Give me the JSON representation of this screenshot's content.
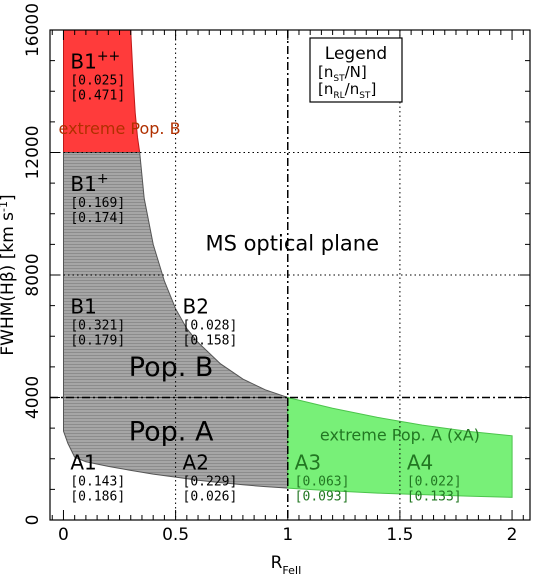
{
  "chart_data": {
    "type": "area",
    "title": "",
    "xlabel": "R",
    "xlabel_sub": "FeII",
    "ylabel": "FWHM(Hβ) [km s",
    "ylabel_sup": "-1",
    "ylabel_end": "]",
    "xlim": [
      -0.06,
      2.08
    ],
    "ylim": [
      0,
      16000
    ],
    "xticks": [
      "0",
      "0.5",
      "1",
      "1.5",
      "2"
    ],
    "yticks": [
      "0",
      "4000",
      "8000",
      "12000",
      "16000"
    ],
    "grid": true,
    "colors": {
      "pop_a": "#999999",
      "pop_b": "#999999",
      "extreme_pop_b": "#ff3b3b",
      "extreme_pop_a": "#78f078",
      "extreme_pop_b_text": "#b03000",
      "extreme_pop_a_text": "#227722"
    },
    "boundary": {
      "description": "right edge of populated region",
      "pop_b": {
        "x": [
          0.34,
          0.36,
          0.4,
          0.45,
          0.5,
          0.55,
          0.6,
          0.7,
          0.8,
          0.9,
          1.0
        ],
        "y": [
          12000,
          10500,
          9000,
          7800,
          6900,
          6250,
          5800,
          5100,
          4600,
          4250,
          4000
        ]
      },
      "extreme_pop_b": {
        "x": [
          0.3,
          0.31,
          0.32,
          0.33,
          0.34
        ],
        "y": [
          16000,
          14500,
          13300,
          12500,
          12000
        ]
      },
      "pop_a_lower": {
        "x": [
          0.02,
          0.05,
          0.1,
          0.2,
          0.3,
          0.4,
          0.5,
          0.6,
          0.7,
          0.8,
          0.9,
          1.0
        ],
        "y": [
          2500,
          2050,
          1900,
          1750,
          1620,
          1500,
          1400,
          1300,
          1220,
          1150,
          1090,
          1040
        ]
      },
      "extreme_pop_a_upper": {
        "x": [
          1.0,
          1.2,
          1.4,
          1.6,
          1.8,
          2.0
        ],
        "y": [
          4000,
          3650,
          3350,
          3100,
          2900,
          2750
        ]
      },
      "extreme_pop_a_lower": {
        "x": [
          1.0,
          1.2,
          1.4,
          1.6,
          1.8,
          2.0
        ],
        "y": [
          1040,
          950,
          880,
          830,
          780,
          740
        ]
      }
    },
    "bins": [
      {
        "name": "B1",
        "sup": "++",
        "values": [
          "[0.025]",
          "[0.471]"
        ],
        "x": 0.12,
        "y": 14750,
        "color": "#000000"
      },
      {
        "name": "B1",
        "sup": "+",
        "values": [
          "[0.169]",
          "[0.174]"
        ],
        "x": 0.12,
        "y": 10750,
        "color": "#000000"
      },
      {
        "name": "B1",
        "sup": "",
        "values": [
          "[0.321]",
          "[0.179]"
        ],
        "x": 0.12,
        "y": 6750,
        "color": "#000000"
      },
      {
        "name": "B2",
        "sup": "",
        "values": [
          "[0.028]",
          "[0.158]"
        ],
        "x": 0.62,
        "y": 6750,
        "color": "#000000"
      },
      {
        "name": "A1",
        "sup": "",
        "values": [
          "[0.143]",
          "[0.186]"
        ],
        "x": 0.12,
        "y": 1650,
        "color": "#000000"
      },
      {
        "name": "A2",
        "sup": "",
        "values": [
          "[0.229]",
          "[0.026]"
        ],
        "x": 0.62,
        "y": 1650,
        "color": "#000000"
      },
      {
        "name": "A3",
        "sup": "",
        "values": [
          "[0.063]",
          "[0.093]"
        ],
        "x": 1.12,
        "y": 1650,
        "color": "#227722"
      },
      {
        "name": "A4",
        "sup": "",
        "values": [
          "[0.022]",
          "[0.133]"
        ],
        "x": 1.62,
        "y": 1650,
        "color": "#227722"
      }
    ],
    "annotations": [
      {
        "text": "extreme Pop. B",
        "x": 0.25,
        "y": 12600,
        "color": "#b03000",
        "size": "medium"
      },
      {
        "text": "MS optical plane",
        "x": 1.02,
        "y": 8800,
        "color": "#000000",
        "size": "large"
      },
      {
        "text": "Pop. B",
        "x": 0.48,
        "y": 4700,
        "color": "#000000",
        "size": "xlarge"
      },
      {
        "text": "Pop. A",
        "x": 0.48,
        "y": 2600,
        "color": "#000000",
        "size": "xlarge"
      },
      {
        "text": "extreme Pop. A (xA)",
        "x": 1.5,
        "y": 2600,
        "color": "#227722",
        "size": "medium"
      }
    ],
    "legend": {
      "title": "Legend",
      "lines": [
        {
          "a": "n",
          "a_sub": "ST",
          "b": "/N"
        },
        {
          "a": "n",
          "a_sub": "RL",
          "b": "/n",
          "b_sub": "ST"
        }
      ],
      "location": "top-center"
    },
    "reference_lines": {
      "vertical_x": 1.0,
      "horizontal_y": 4000
    }
  }
}
